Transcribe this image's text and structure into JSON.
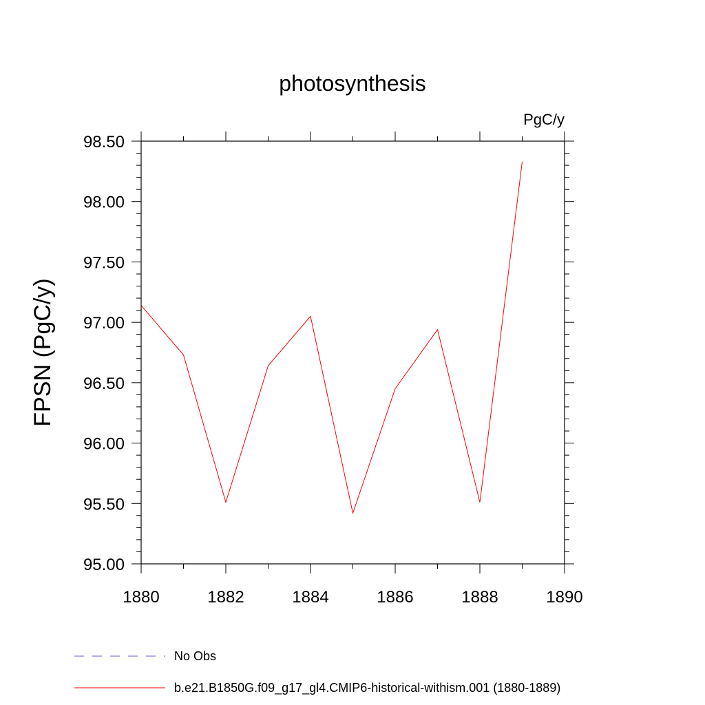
{
  "chart_data": {
    "type": "line",
    "title": "photosynthesis",
    "units_label": "PgC/y",
    "ylabel": "FPSN  (PgC/y)",
    "xlabel": "",
    "xlim": [
      1880,
      1890
    ],
    "ylim": [
      95.0,
      98.5
    ],
    "x_ticks": [
      "1880",
      "1882",
      "1884",
      "1886",
      "1888",
      "1890"
    ],
    "y_ticks": [
      "95.00",
      "95.50",
      "96.00",
      "96.50",
      "97.00",
      "97.50",
      "98.00",
      "98.50"
    ],
    "grid": false,
    "legend_position": "bottom",
    "series": [
      {
        "name": "No Obs",
        "color": "#6a5acd",
        "dash": true,
        "x": [],
        "values": []
      },
      {
        "name": "b.e21.B1850G.f09_g17_gl4.CMIP6-historical-withism.001 (1880-1889)",
        "color": "#ff0000",
        "dash": false,
        "x": [
          1880,
          1881,
          1882,
          1883,
          1884,
          1885,
          1886,
          1887,
          1888,
          1889
        ],
        "values": [
          97.14,
          96.73,
          95.51,
          96.64,
          97.05,
          95.42,
          96.45,
          96.94,
          95.51,
          98.33
        ]
      }
    ]
  }
}
